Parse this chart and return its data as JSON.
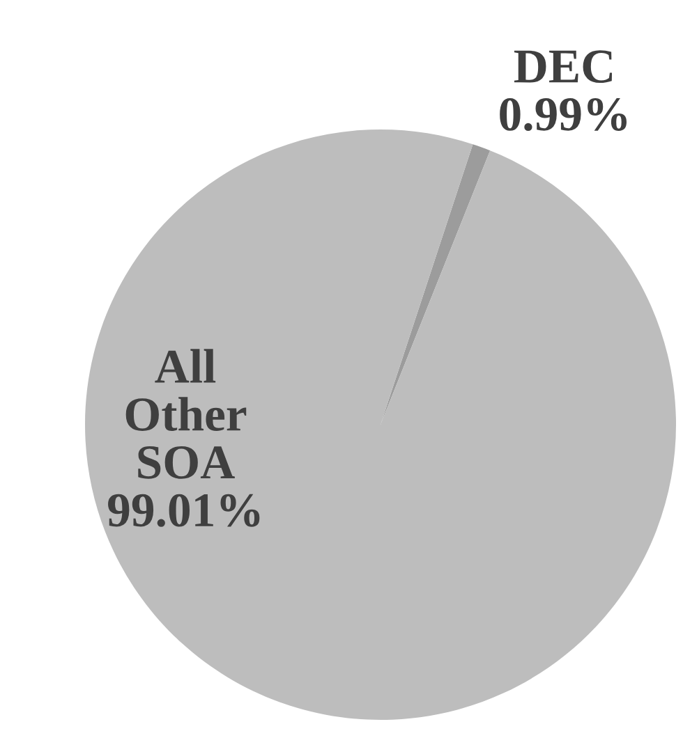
{
  "chart_data": {
    "type": "pie",
    "categories": [
      "DEC",
      "All Other SOA"
    ],
    "values": [
      0.99,
      99.01
    ],
    "colors": [
      "#9c9c9c",
      "#bdbdbd"
    ],
    "value_labels": [
      "0.99%",
      "99.01%"
    ]
  }
}
